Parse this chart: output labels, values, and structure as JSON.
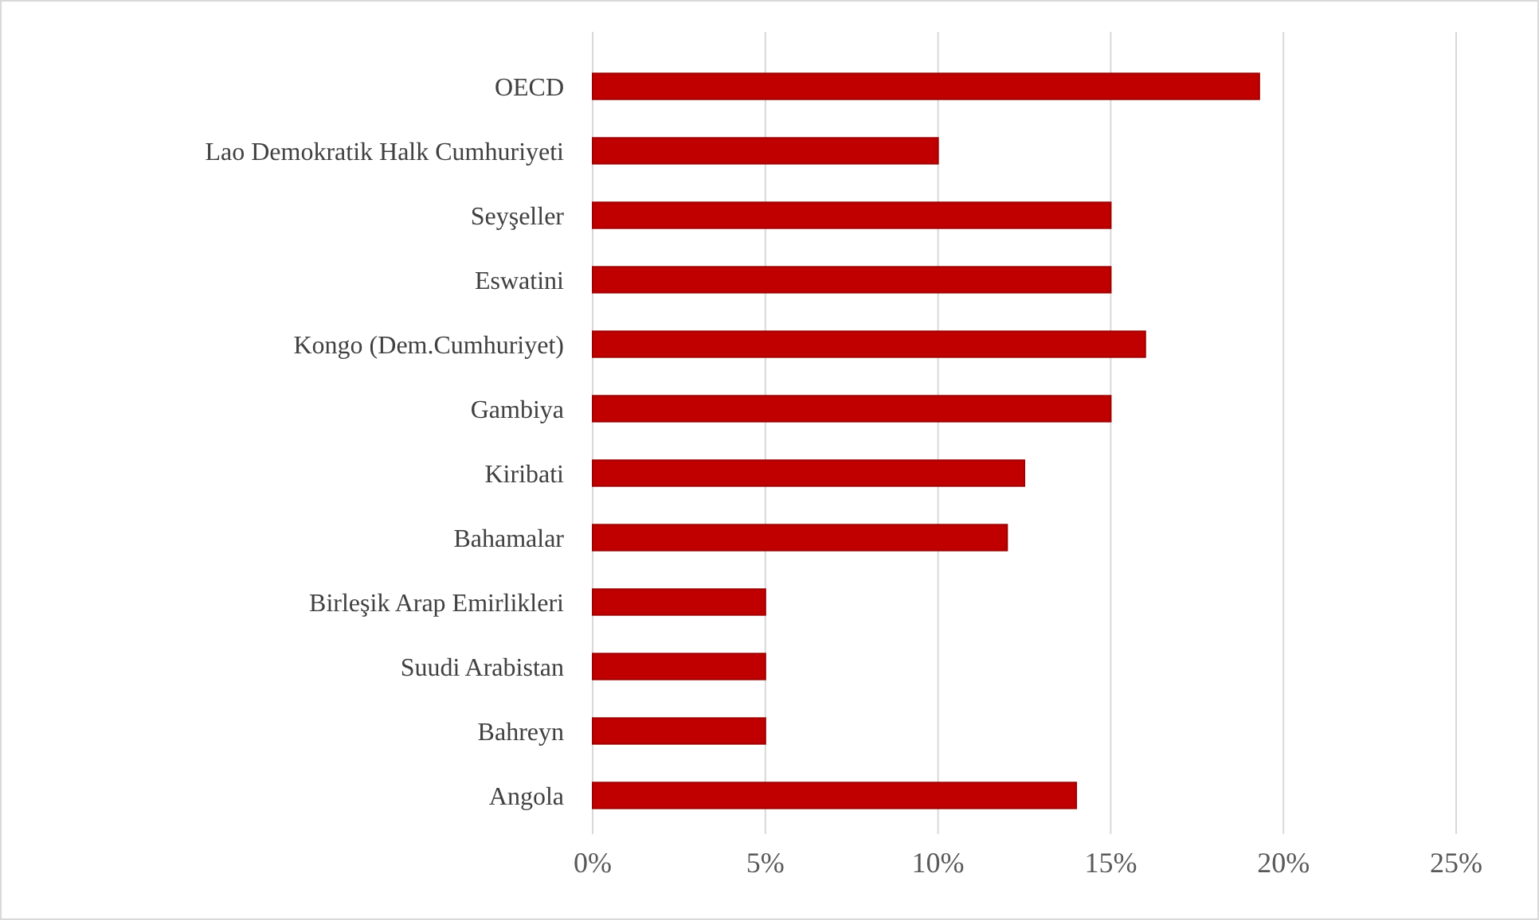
{
  "chart_data": {
    "type": "bar",
    "orientation": "horizontal",
    "categories": [
      "OECD",
      "Lao Demokratik Halk Cumhuriyeti",
      "Seyşeller",
      "Eswatini",
      "Kongo (Dem.Cumhuriyet)",
      "Gambiya",
      "Kiribati",
      "Bahamalar",
      "Birleşik Arap Emirlikleri",
      "Suudi Arabistan",
      "Bahreyn",
      "Angola"
    ],
    "values": [
      19.3,
      10,
      15,
      15,
      16,
      15,
      12.5,
      12,
      5,
      5,
      5,
      14
    ],
    "color": "#c00000",
    "xlim": [
      0,
      25
    ],
    "xticks": [
      {
        "value": 0,
        "label": "0%"
      },
      {
        "value": 5,
        "label": "5%"
      },
      {
        "value": 10,
        "label": "10%"
      },
      {
        "value": 15,
        "label": "15%"
      },
      {
        "value": 20,
        "label": "20%"
      },
      {
        "value": 25,
        "label": "25%"
      }
    ],
    "grid": "x"
  }
}
